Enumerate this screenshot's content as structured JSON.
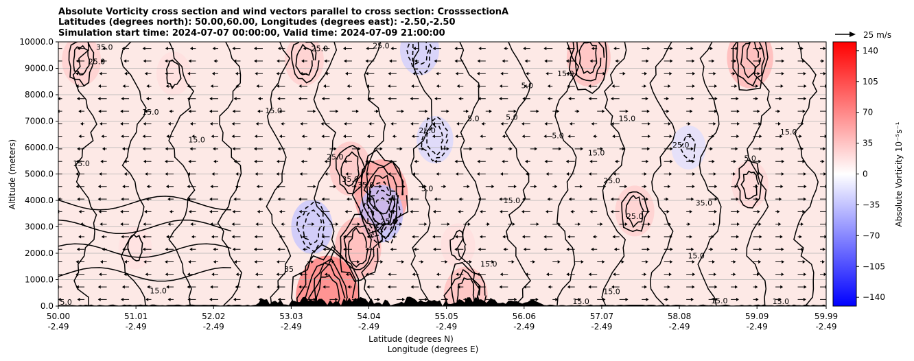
{
  "chart_data": {
    "type": "heatmap",
    "title_lines": [
      "Absolute Vorticity cross section and wind vectors parallel to cross section: CrosssectionA",
      "Latitudes (degrees north): 50.00,60.00, Longitudes (degrees east): -2.50,-2.50",
      "Simulation start time: 2024-07-07 00:00:00, Valid time: 2024-07-09 21:00:00"
    ],
    "xlabel_lines": [
      "Latitude (degrees N)",
      "Longitude (degrees E)"
    ],
    "ylabel": "Altitude (meters)",
    "x_ticks": [
      {
        "lat": 50.0,
        "lat_label": "50.00",
        "lon_label": "-2.49"
      },
      {
        "lat": 51.01,
        "lat_label": "51.01",
        "lon_label": "-2.49"
      },
      {
        "lat": 52.02,
        "lat_label": "52.02",
        "lon_label": "-2.49"
      },
      {
        "lat": 53.03,
        "lat_label": "53.03",
        "lon_label": "-2.49"
      },
      {
        "lat": 54.04,
        "lat_label": "54.04",
        "lon_label": "-2.49"
      },
      {
        "lat": 55.05,
        "lat_label": "55.05",
        "lon_label": "-2.49"
      },
      {
        "lat": 56.06,
        "lat_label": "56.06",
        "lon_label": "-2.49"
      },
      {
        "lat": 57.07,
        "lat_label": "57.07",
        "lon_label": "-2.49"
      },
      {
        "lat": 58.08,
        "lat_label": "58.08",
        "lon_label": "-2.49"
      },
      {
        "lat": 59.09,
        "lat_label": "59.09",
        "lon_label": "-2.49"
      },
      {
        "lat": 59.99,
        "lat_label": "59.99",
        "lon_label": "-2.49"
      }
    ],
    "xlim": [
      50.0,
      59.99
    ],
    "ylim": [
      0,
      10000
    ],
    "y_ticks": [
      {
        "value": 0,
        "label": "0.0"
      },
      {
        "value": 1000,
        "label": "1000.0"
      },
      {
        "value": 2000,
        "label": "2000.0"
      },
      {
        "value": 3000,
        "label": "3000.0"
      },
      {
        "value": 4000,
        "label": "4000.0"
      },
      {
        "value": 5000,
        "label": "5000.0"
      },
      {
        "value": 6000,
        "label": "6000.0"
      },
      {
        "value": 7000,
        "label": "7000.0"
      },
      {
        "value": 8000,
        "label": "8000.0"
      },
      {
        "value": 9000,
        "label": "9000.0"
      },
      {
        "value": 10000,
        "label": "10000.0"
      }
    ],
    "grid": "horizontal",
    "colorbar": {
      "label": "Absolute Vorticity 10⁻⁵s⁻¹",
      "range": [
        -150,
        150
      ],
      "colormap": "bwr",
      "ticks": [
        {
          "value": 140,
          "label": "140"
        },
        {
          "value": 105,
          "label": "105"
        },
        {
          "value": 70,
          "label": "70"
        },
        {
          "value": 35,
          "label": "35"
        },
        {
          "value": 0,
          "label": "0"
        },
        {
          "value": -35,
          "label": "−35"
        },
        {
          "value": -70,
          "label": "−70"
        },
        {
          "value": -105,
          "label": "−105"
        },
        {
          "value": -140,
          "label": "−140"
        }
      ]
    },
    "quiver_key": {
      "label": "25 m/s",
      "speed": 25
    },
    "vorticity_features": [
      {
        "lat": 50.3,
        "alt": 9300,
        "value": 30
      },
      {
        "lat": 51.5,
        "alt": 8800,
        "value": 20
      },
      {
        "lat": 53.2,
        "alt": 9300,
        "value": 30
      },
      {
        "lat": 54.7,
        "alt": 9700,
        "value": -30
      },
      {
        "lat": 56.9,
        "alt": 9400,
        "value": 40
      },
      {
        "lat": 59.0,
        "alt": 9400,
        "value": 45
      },
      {
        "lat": 53.8,
        "alt": 5200,
        "value": 35
      },
      {
        "lat": 54.2,
        "alt": 4200,
        "value": 60
      },
      {
        "lat": 54.2,
        "alt": 3500,
        "value": -40
      },
      {
        "lat": 54.9,
        "alt": 6300,
        "value": -25
      },
      {
        "lat": 58.2,
        "alt": 6000,
        "value": -20
      },
      {
        "lat": 53.3,
        "alt": 3000,
        "value": -35
      },
      {
        "lat": 53.9,
        "alt": 2200,
        "value": 45
      },
      {
        "lat": 55.2,
        "alt": 2300,
        "value": 20
      },
      {
        "lat": 57.5,
        "alt": 3600,
        "value": 30
      },
      {
        "lat": 59.0,
        "alt": 4600,
        "value": 25
      },
      {
        "lat": 51.0,
        "alt": 2200,
        "value": 18
      },
      {
        "lat": 53.5,
        "alt": 300,
        "value": 80
      },
      {
        "lat": 55.3,
        "alt": 400,
        "value": 40
      }
    ],
    "contour_labels": [
      {
        "lat": 50.1,
        "alt": 50,
        "label": "5.0"
      },
      {
        "lat": 50.5,
        "alt": 9150,
        "label": "25.0"
      },
      {
        "lat": 50.6,
        "alt": 9700,
        "label": "35.0"
      },
      {
        "lat": 51.3,
        "alt": 480,
        "label": "15.0"
      },
      {
        "lat": 51.2,
        "alt": 7250,
        "label": "15.0"
      },
      {
        "lat": 51.8,
        "alt": 6200,
        "label": "15.0"
      },
      {
        "lat": 50.3,
        "alt": 5300,
        "label": "15.0"
      },
      {
        "lat": 52.8,
        "alt": 7300,
        "label": "15.0"
      },
      {
        "lat": 53.4,
        "alt": 9650,
        "label": "25.0"
      },
      {
        "lat": 54.2,
        "alt": 9750,
        "label": "25.0"
      },
      {
        "lat": 53.6,
        "alt": 5550,
        "label": "25.0"
      },
      {
        "lat": 54.0,
        "alt": 4500,
        "label": "35.0"
      },
      {
        "lat": 53.8,
        "alt": 4700,
        "label": "35.0"
      },
      {
        "lat": 54.3,
        "alt": 3100,
        "label": "25.0"
      },
      {
        "lat": 54.8,
        "alt": 6550,
        "label": "25.0"
      },
      {
        "lat": 55.4,
        "alt": 7000,
        "label": "5.0"
      },
      {
        "lat": 56.1,
        "alt": 8250,
        "label": "5.0"
      },
      {
        "lat": 55.9,
        "alt": 7050,
        "label": "5.0"
      },
      {
        "lat": 56.5,
        "alt": 6350,
        "label": "5.0"
      },
      {
        "lat": 57.0,
        "alt": 5700,
        "label": "15.0"
      },
      {
        "lat": 57.4,
        "alt": 7000,
        "label": "15.0"
      },
      {
        "lat": 57.2,
        "alt": 4650,
        "label": "25.0"
      },
      {
        "lat": 55.9,
        "alt": 3900,
        "label": "15.0"
      },
      {
        "lat": 57.5,
        "alt": 3300,
        "label": "25.0"
      },
      {
        "lat": 58.4,
        "alt": 3800,
        "label": "35.0"
      },
      {
        "lat": 58.3,
        "alt": 1800,
        "label": "15.0"
      },
      {
        "lat": 59.5,
        "alt": 6500,
        "label": "15.0"
      },
      {
        "lat": 59.0,
        "alt": 5500,
        "label": "5.0"
      },
      {
        "lat": 58.1,
        "alt": 6000,
        "label": "25.0"
      },
      {
        "lat": 56.6,
        "alt": 8700,
        "label": "15.0"
      },
      {
        "lat": 56.8,
        "alt": 80,
        "label": "15.0"
      },
      {
        "lat": 57.2,
        "alt": 450,
        "label": "15.0"
      },
      {
        "lat": 58.6,
        "alt": 100,
        "label": "15.0"
      },
      {
        "lat": 59.4,
        "alt": 80,
        "label": "15.0"
      },
      {
        "lat": 55.6,
        "alt": 1500,
        "label": "15.0"
      },
      {
        "lat": 53.0,
        "alt": 1300,
        "label": "35"
      },
      {
        "lat": 54.8,
        "alt": 4350,
        "label": "5.0"
      }
    ]
  }
}
